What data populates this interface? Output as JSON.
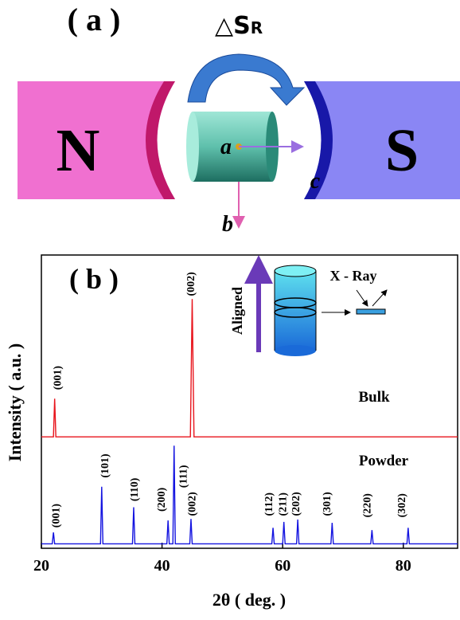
{
  "panel_a": {
    "label": "( a )",
    "delta_s": "△S",
    "delta_s_sub": "R",
    "north": "N",
    "south": "S",
    "axis_a": "a",
    "axis_b": "b",
    "axis_c": "c"
  },
  "chart_data": {
    "type": "line",
    "panel_label": "( b )",
    "xlabel": "2θ ( deg. )",
    "ylabel": "Intensity ( a.u. )",
    "xlim": [
      20,
      89
    ],
    "ylim": [
      0,
      100
    ],
    "xticks": [
      20,
      40,
      60,
      80
    ],
    "series": [
      {
        "name": "Bulk",
        "color": "#e8141c",
        "x": [
          20,
          22.0,
          22.2,
          22.4,
          44.7,
          45.0,
          45.3,
          89
        ],
        "values": [
          38,
          38,
          51,
          38,
          38,
          85,
          38,
          38
        ]
      },
      {
        "name": "Powder",
        "color": "#1414e0",
        "x": [
          20,
          21.8,
          22.0,
          22.2,
          29.8,
          30.0,
          30.2,
          35.1,
          35.3,
          35.5,
          40.8,
          41.0,
          41.2,
          41.8,
          42.0,
          42.2,
          44.6,
          44.8,
          45.0,
          58.2,
          58.4,
          58.6,
          60.0,
          60.2,
          60.4,
          62.3,
          62.5,
          62.7,
          68.0,
          68.2,
          68.4,
          74.6,
          74.8,
          75.0,
          80.6,
          80.8,
          81.0,
          89
        ],
        "values": [
          1.5,
          1.5,
          5.4,
          1.5,
          1.5,
          21,
          1.5,
          1.5,
          14,
          1.5,
          1.5,
          9.5,
          1.5,
          1.5,
          35,
          1.5,
          1.5,
          10,
          1.5,
          1.5,
          7,
          1.5,
          1.5,
          9,
          1.5,
          1.5,
          9.8,
          1.5,
          1.5,
          8.7,
          1.5,
          1.5,
          6.2,
          1.5,
          1.5,
          7,
          1.5,
          1.5
        ]
      }
    ],
    "annotations": [
      {
        "text": "(001)",
        "x": 22.6,
        "y": 54
      },
      {
        "text": "(002)",
        "x": 44.7,
        "y": 86
      },
      {
        "text": "(001)",
        "x": 22.3,
        "y": 7
      },
      {
        "text": "(101)",
        "x": 30.4,
        "y": 24
      },
      {
        "text": "(110)",
        "x": 35.3,
        "y": 16
      },
      {
        "text": "(200)",
        "x": 39.8,
        "y": 12.5
      },
      {
        "text": "(111)",
        "x": 43.4,
        "y": 20.6
      },
      {
        "text": "(002)",
        "x": 44.9,
        "y": 11
      },
      {
        "text": "(112)",
        "x": 57.6,
        "y": 11
      },
      {
        "text": "(211)",
        "x": 59.9,
        "y": 11
      },
      {
        "text": "(202)",
        "x": 62.1,
        "y": 11
      },
      {
        "text": "(301)",
        "x": 67.2,
        "y": 11
      },
      {
        "text": "(220)",
        "x": 73.9,
        "y": 10.5
      },
      {
        "text": "(302)",
        "x": 79.6,
        "y": 10.5
      }
    ],
    "inset": {
      "aligned": "Aligned",
      "xray": "X - Ray"
    }
  }
}
